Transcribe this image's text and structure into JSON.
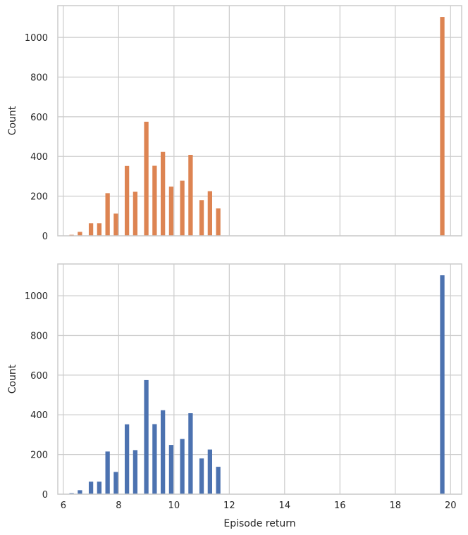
{
  "chart_data": [
    {
      "type": "bar",
      "color": "#DD8452",
      "xlabel": "",
      "ylabel": "Count",
      "xlim": [
        5.8,
        20.4
      ],
      "ylim": [
        0,
        1160
      ],
      "xticks": [
        6,
        8,
        10,
        12,
        14,
        16,
        18,
        20
      ],
      "xtick_labels_visible": false,
      "yticks": [
        0,
        200,
        400,
        600,
        800,
        1000
      ],
      "grid": true,
      "bar_width": 0.16,
      "x": [
        6.3,
        6.6,
        7.0,
        7.3,
        7.6,
        7.9,
        8.3,
        8.6,
        9.0,
        9.3,
        9.6,
        9.9,
        10.3,
        10.6,
        11.0,
        11.3,
        11.6,
        11.9,
        19.7
      ],
      "values": [
        5,
        20,
        63,
        63,
        215,
        112,
        352,
        222,
        575,
        353,
        423,
        248,
        278,
        408,
        180,
        225,
        138,
        0,
        1103
      ]
    },
    {
      "type": "bar",
      "color": "#4C72B0",
      "xlabel": "Episode return",
      "ylabel": "Count",
      "xlim": [
        5.8,
        20.4
      ],
      "ylim": [
        0,
        1160
      ],
      "xticks": [
        6,
        8,
        10,
        12,
        14,
        16,
        18,
        20
      ],
      "xtick_labels_visible": true,
      "yticks": [
        0,
        200,
        400,
        600,
        800,
        1000
      ],
      "grid": true,
      "bar_width": 0.16,
      "x": [
        6.3,
        6.6,
        7.0,
        7.3,
        7.6,
        7.9,
        8.3,
        8.6,
        9.0,
        9.3,
        9.6,
        9.9,
        10.3,
        10.6,
        11.0,
        11.3,
        11.6,
        11.9,
        19.7
      ],
      "values": [
        5,
        20,
        63,
        63,
        215,
        112,
        352,
        222,
        575,
        353,
        423,
        248,
        278,
        408,
        180,
        225,
        138,
        0,
        1103
      ]
    }
  ]
}
